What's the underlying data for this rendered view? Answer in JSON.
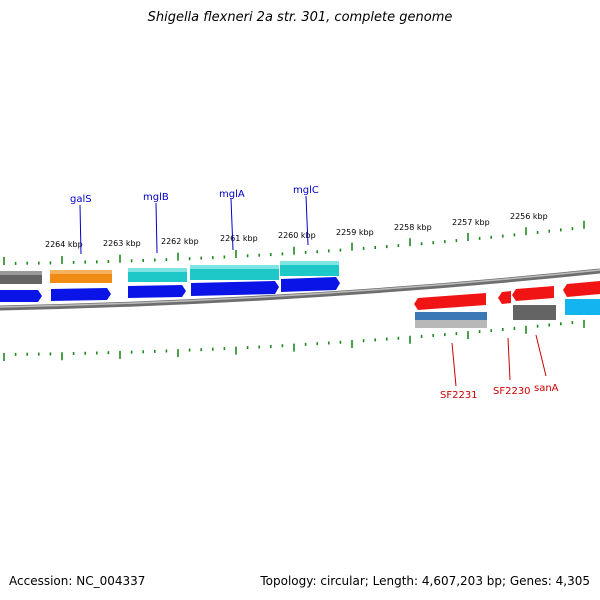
{
  "title": "Shigella flexneri 2a str. 301, complete genome",
  "footer": {
    "accession": "Accession: NC_004337",
    "summary": "Topology: circular; Length: 4,607,203 bp; Genes: 4,305"
  },
  "colors": {
    "backbone": "#8a8a8a",
    "tick": "#1f8a1f",
    "label_top": "#0000cc",
    "label_bottom": "#cc0000",
    "gene_blue": "#0a14e6",
    "gene_cyan": "#1ec8c8",
    "gene_orange": "#f08c14",
    "gene_gray": "#646464",
    "gene_red": "#f01414",
    "gene_steel": "#3c78b4",
    "gene_sky": "#14b4f0"
  },
  "kbp_labels": [
    "2264 kbp",
    "2263 kbp",
    "2262 kbp",
    "2261 kbp",
    "2260 kbp",
    "2259 kbp",
    "2258 kbp",
    "2257 kbp",
    "2256 kbp"
  ],
  "genes_top": [
    {
      "name": "galS",
      "color": "#0000cc"
    },
    {
      "name": "mglB",
      "color": "#0000cc"
    },
    {
      "name": "mglA",
      "color": "#0000cc"
    },
    {
      "name": "mglC",
      "color": "#0000cc"
    }
  ],
  "genes_bottom": [
    {
      "name": "SF2231",
      "color": "#cc0000"
    },
    {
      "name": "SF2230",
      "color": "#cc0000"
    },
    {
      "name": "sanA",
      "color": "#cc0000"
    }
  ]
}
